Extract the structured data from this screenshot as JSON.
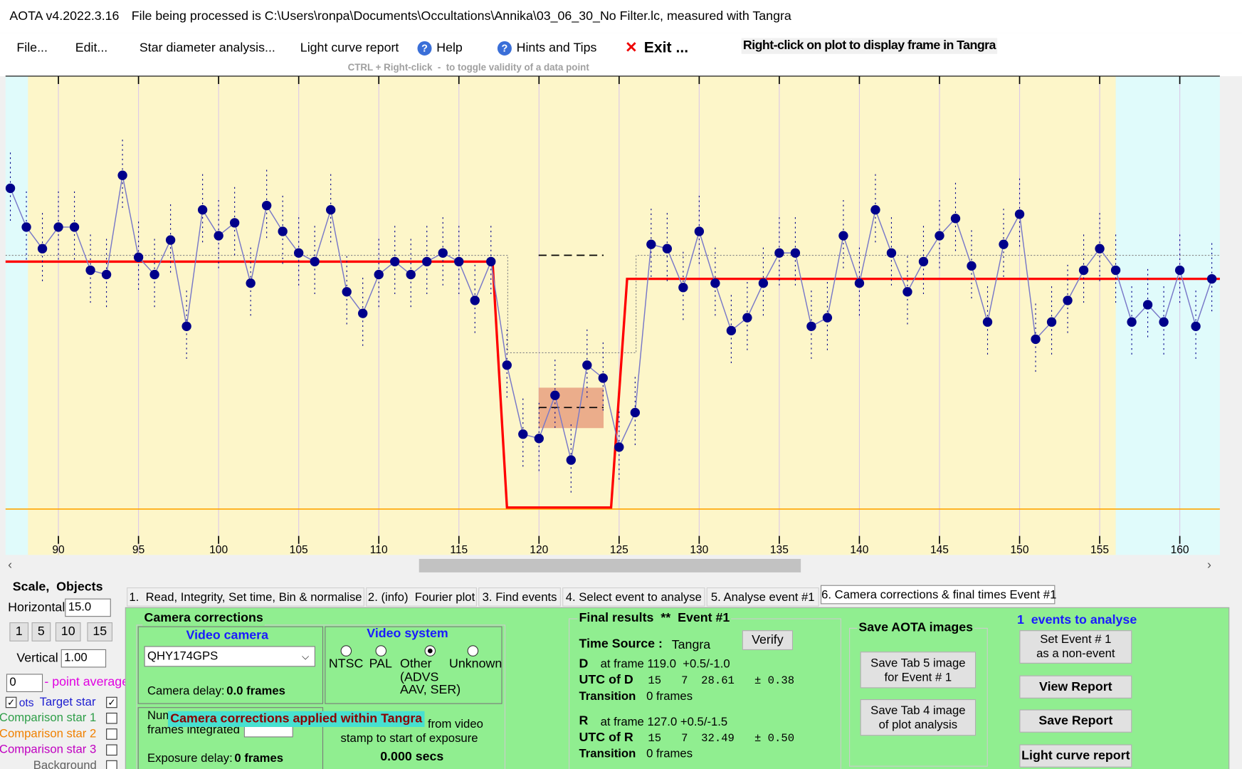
{
  "title_bar": {
    "app": "AOTA v4.2022.3.16",
    "file": "File being processed is C:\\Users\\ronpa\\Documents\\Occultations\\Annika\\03_06_30_No Filter.lc, measured with Tangra"
  },
  "menu": [
    "File...",
    "Edit...",
    "Star diameter analysis...",
    "Light curve report",
    "Help",
    "Hints and Tips",
    "Exit ..."
  ],
  "plot_hint": "Right-click on plot to display frame in Tangra",
  "ctrl_hint": "CTRL + Right-click  -  to toggle validity of a data point",
  "plot": {
    "type": "scatter",
    "x": [
      87,
      88,
      89,
      90,
      91,
      92,
      93,
      94,
      95,
      96,
      97,
      98,
      99,
      100,
      101,
      102,
      103,
      104,
      105,
      106,
      107,
      108,
      109,
      110,
      111,
      112,
      113,
      114,
      115,
      116,
      117,
      118,
      119,
      120,
      121,
      122,
      123,
      124,
      125,
      126,
      127,
      128,
      129,
      130,
      131,
      132,
      133,
      134,
      135,
      136,
      137,
      138,
      139,
      140,
      141,
      142,
      143,
      144,
      145,
      146,
      147,
      148,
      149,
      150,
      151,
      152,
      153,
      154,
      155,
      156,
      157,
      158,
      159,
      160,
      161,
      162
    ],
    "values": [
      74,
      65,
      60,
      65,
      65,
      55,
      54,
      77,
      58,
      54,
      62,
      42,
      69,
      63,
      66,
      52,
      70,
      64,
      59,
      57,
      69,
      50,
      45,
      54,
      57,
      54,
      57,
      59,
      57,
      48,
      57,
      33,
      17,
      16,
      26,
      11,
      33,
      30,
      14,
      22,
      61,
      60,
      51,
      64,
      52,
      41,
      44,
      52,
      59,
      59,
      42,
      44,
      63,
      52,
      69,
      59,
      50,
      57,
      63,
      67,
      56,
      43,
      61,
      68,
      39,
      43,
      48,
      55,
      60,
      55,
      43,
      47,
      43,
      55,
      42,
      53
    ],
    "xlim": [
      86.7,
      162.5
    ],
    "ylim": [
      -11,
      100
    ],
    "xticks": [
      90,
      95,
      100,
      105,
      110,
      115,
      120,
      125,
      130,
      135,
      140,
      145,
      150,
      155,
      160
    ],
    "selected_range": [
      88.1,
      156
    ],
    "model": {
      "x": [
        86.7,
        117.1,
        118.0,
        124.5,
        125.5,
        162.5
      ],
      "y": [
        57,
        57,
        0,
        0,
        53,
        53
      ]
    },
    "event_level": 0,
    "color": "#00008b",
    "line_color": "#7878c8",
    "model_color": "#ff0000",
    "event_level_color": "#ffa500",
    "region_color": "#fdf6c9",
    "background_color": "#e0fbfb"
  },
  "scale_panel": {
    "title": "Scale,  Objects",
    "horizontal": "Horizontal",
    "horizontal_value": "15.0",
    "buttons": [
      "1",
      "5",
      "10",
      "15"
    ],
    "vertical": "Vertical",
    "vertical_value": "1.00",
    "average_value": "0",
    "average_label": "- point average",
    "plots": "ots",
    "objects": [
      "Target star",
      "Comparison star 1",
      "Comparison star 2",
      "Comparison star 3",
      "Background"
    ]
  },
  "tabs": [
    "1.  Read, Integrity, Set time, Bin & normalise",
    "2. (info)  Fourier plot",
    "3. Find events",
    "4. Select event to analyse",
    "5. Analyse event #1",
    "6. Camera corrections & final times Event #1"
  ],
  "camera_corrections": {
    "title": "Camera corrections",
    "video_camera": "Video camera",
    "camera_name": "QHY174GPS",
    "camera_delay": "Camera delay:",
    "camera_delay_value": "0.0 frames",
    "video_system": "Video system",
    "systems": [
      "NTSC",
      "PAL",
      "Other",
      "Unknown"
    ],
    "other_detail_1": "(ADVS",
    "other_detail_2": "AAV, SER)",
    "num": "Num",
    "frames_integrated": "frames integrated",
    "overlay": "Camera corrections applied within Tangra",
    "from_video": "from video",
    "stamp": "stamp to start of exposure",
    "secs": "0.000 secs",
    "exposure_delay": "Exposure delay:",
    "exposure_delay_value": "0 frames"
  },
  "final_results": {
    "title": "Final results  **  Event #1",
    "time_source": "Time Source :",
    "time_source_value": "Tangra",
    "verify": "Verify",
    "d": "D",
    "d_frame": "at frame 119.0  +0.5/-1.0",
    "utc_d": "UTC of D",
    "utc_d_value": "15   7  28.61   ± 0.38",
    "transition": "Transition",
    "d_transition_value": "0 frames",
    "r": "R",
    "r_frame": "at frame 127.0 +0.5/-1.5",
    "utc_r": "UTC of R",
    "utc_r_value": "15   7  32.49   ± 0.50",
    "r_transition_value": "0 frames"
  },
  "save_images": {
    "title": "Save AOTA images",
    "tab5_line1": "Save Tab 5 image",
    "tab5_line2": "for Event # 1",
    "tab4_line1": "Save Tab 4 image",
    "tab4_line2": "of plot analysis"
  },
  "right_panel": {
    "events": "1  events to analyse",
    "non_event_line1": "Set Event # 1",
    "non_event_line2": "as a non-event",
    "view_report": "View Report",
    "save_report": "Save Report",
    "light_curve_report": "Light curve report"
  }
}
